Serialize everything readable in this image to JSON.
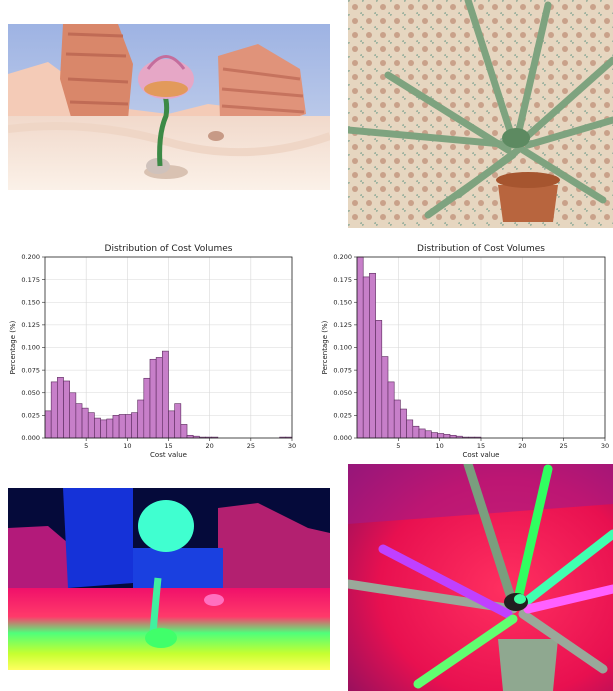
{
  "figure": {
    "scene_left": "desert-flower-render",
    "scene_right": "aloe-plant-photo",
    "flow_left": "optical-flow-desert",
    "flow_right": "optical-flow-aloe"
  },
  "chart_data": [
    {
      "type": "bar",
      "title": "Distribution of Cost Volumes",
      "xlabel": "Cost value",
      "ylabel": "Percentage (%)",
      "xlim": [
        0,
        30
      ],
      "ylim": [
        0,
        0.2
      ],
      "xticks": [
        "5",
        "10",
        "15",
        "20",
        "25",
        "30"
      ],
      "yticks": [
        "0.000",
        "0.025",
        "0.050",
        "0.075",
        "0.100",
        "0.125",
        "0.150",
        "0.175",
        "0.200"
      ],
      "bin_width": 0.75,
      "bar_color": "#c77fc9",
      "edge_color": "#5a2a5c",
      "grid": true,
      "values": [
        0.03,
        0.062,
        0.067,
        0.063,
        0.05,
        0.038,
        0.033,
        0.028,
        0.022,
        0.02,
        0.021,
        0.025,
        0.026,
        0.026,
        0.028,
        0.042,
        0.066,
        0.087,
        0.089,
        0.096,
        0.03,
        0.038,
        0.015,
        0.003,
        0.002,
        0.001,
        0.001,
        0.001,
        0.0,
        0.0,
        0.0,
        0.0,
        0.0,
        0.0,
        0.0,
        0.0,
        0.0,
        0.0,
        0.001,
        0.001
      ]
    },
    {
      "type": "bar",
      "title": "Distribution of Cost Volumes",
      "xlabel": "Cost value",
      "ylabel": "Percentage (%)",
      "xlim": [
        0,
        30
      ],
      "ylim": [
        0,
        0.2
      ],
      "xticks": [
        "5",
        "10",
        "15",
        "20",
        "25",
        "30"
      ],
      "yticks": [
        "0.000",
        "0.025",
        "0.050",
        "0.075",
        "0.100",
        "0.125",
        "0.150",
        "0.175",
        "0.200"
      ],
      "bin_width": 0.75,
      "bar_color": "#c77fc9",
      "edge_color": "#5a2a5c",
      "grid": true,
      "values": [
        0.2,
        0.178,
        0.182,
        0.13,
        0.09,
        0.062,
        0.042,
        0.032,
        0.02,
        0.013,
        0.01,
        0.008,
        0.006,
        0.005,
        0.004,
        0.003,
        0.002,
        0.001,
        0.001,
        0.001,
        0.0,
        0.0,
        0.0,
        0.0,
        0.0,
        0.0,
        0.0,
        0.0,
        0.0,
        0.0,
        0.0,
        0.0,
        0.0,
        0.0,
        0.0,
        0.0,
        0.0,
        0.0,
        0.0,
        0.0
      ]
    }
  ]
}
